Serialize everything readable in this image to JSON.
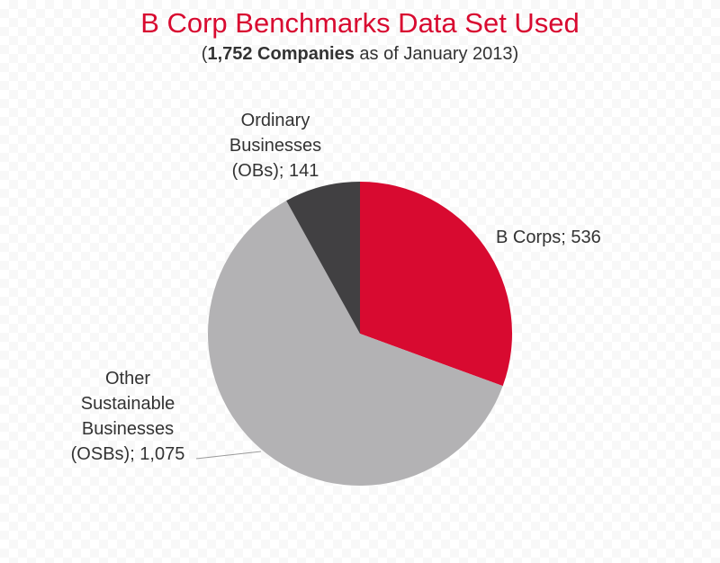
{
  "chart_data": {
    "type": "pie",
    "title": "B Corp Benchmarks Data Set Used",
    "subtitle": {
      "open": "(",
      "bold": "1,752 Companies",
      "rest": " as of January 2013)"
    },
    "slices": [
      {
        "key": "bcorps",
        "label": "B Corps; 536",
        "label_lines": [
          "B Corps; 536"
        ],
        "value": 536,
        "color": "#d80a30"
      },
      {
        "key": "osbs",
        "label": "Other Sustainable Businesses (OSBs); 1,075",
        "label_lines": [
          "Other",
          "Sustainable",
          "Businesses",
          "(OSBs); 1,075"
        ],
        "value": 1075,
        "color": "#b3b2b4"
      },
      {
        "key": "obs",
        "label": "Ordinary Businesses (OBs); 141",
        "label_lines": [
          "Ordinary",
          "Businesses",
          "(OBs); 141"
        ],
        "value": 141,
        "color": "#414042"
      }
    ],
    "start_angle": "12 o'clock",
    "direction": "clockwise"
  }
}
